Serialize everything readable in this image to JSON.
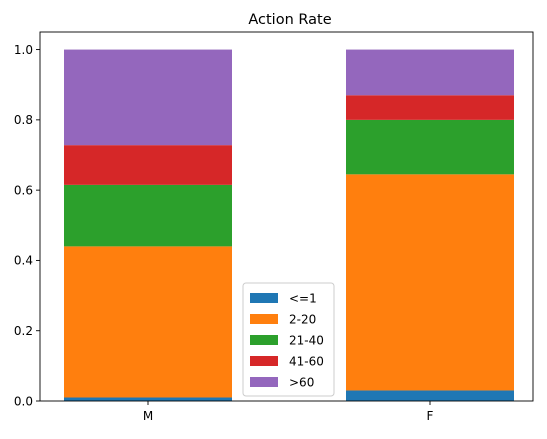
{
  "chart_data": {
    "type": "bar",
    "stacked": true,
    "title": "Action Rate",
    "xlabel": "",
    "ylabel": "",
    "categories": [
      "M",
      "F"
    ],
    "ylim": [
      0,
      1.05
    ],
    "yticks": [
      "0.0",
      "0.2",
      "0.4",
      "0.6",
      "0.8",
      "1.0"
    ],
    "grid": false,
    "legend_position": "bottom-center",
    "series": [
      {
        "name": "<=1",
        "color": "#1f77b4",
        "values": [
          0.01,
          0.03
        ]
      },
      {
        "name": "2-20",
        "color": "#ff7f0e",
        "values": [
          0.43,
          0.615
        ]
      },
      {
        "name": "21-40",
        "color": "#2ca02c",
        "values": [
          0.175,
          0.155
        ]
      },
      {
        "name": "41-60",
        "color": "#d62728",
        "values": [
          0.113,
          0.07
        ]
      },
      {
        "name": ">60",
        "color": "#9467bd",
        "values": [
          0.272,
          0.13
        ]
      }
    ]
  }
}
